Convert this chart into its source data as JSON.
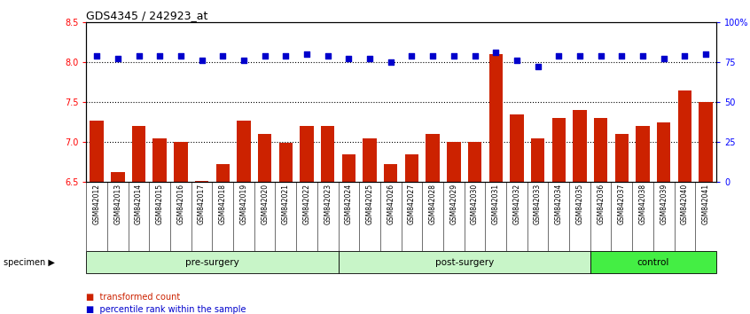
{
  "title": "GDS4345 / 242923_at",
  "categories": [
    "GSM842012",
    "GSM842013",
    "GSM842014",
    "GSM842015",
    "GSM842016",
    "GSM842017",
    "GSM842018",
    "GSM842019",
    "GSM842020",
    "GSM842021",
    "GSM842022",
    "GSM842023",
    "GSM842024",
    "GSM842025",
    "GSM842026",
    "GSM842027",
    "GSM842028",
    "GSM842029",
    "GSM842030",
    "GSM842031",
    "GSM842032",
    "GSM842033",
    "GSM842034",
    "GSM842035",
    "GSM842036",
    "GSM842037",
    "GSM842038",
    "GSM842039",
    "GSM842040",
    "GSM842041"
  ],
  "bar_values": [
    7.27,
    6.62,
    7.2,
    7.05,
    7.0,
    6.52,
    6.72,
    7.27,
    7.1,
    6.99,
    7.2,
    7.2,
    6.85,
    7.05,
    6.72,
    6.85,
    7.1,
    7.0,
    7.0,
    8.1,
    7.35,
    7.05,
    7.3,
    7.4,
    7.3,
    7.1,
    7.2,
    7.25,
    7.65,
    7.5
  ],
  "percentile_values": [
    79,
    77,
    79,
    79,
    79,
    76,
    79,
    76,
    79,
    79,
    80,
    79,
    77,
    77,
    75,
    79,
    79,
    79,
    79,
    81,
    76,
    72,
    79,
    79,
    79,
    79,
    79,
    77,
    79,
    80
  ],
  "bar_color": "#cc2200",
  "dot_color": "#0000cc",
  "ylim_left": [
    6.5,
    8.5
  ],
  "ylim_right": [
    0,
    100
  ],
  "yticks_left": [
    6.5,
    7.0,
    7.5,
    8.0,
    8.5
  ],
  "yticks_right": [
    0,
    25,
    50,
    75,
    100
  ],
  "ytick_labels_right": [
    "0",
    "25",
    "50",
    "75",
    "100%"
  ],
  "groups": [
    {
      "label": "pre-surgery",
      "start": 0,
      "end": 12,
      "color": "#c8f5c8"
    },
    {
      "label": "post-surgery",
      "start": 12,
      "end": 24,
      "color": "#c8f5c8"
    },
    {
      "label": "control",
      "start": 24,
      "end": 30,
      "color": "#44ee44"
    }
  ],
  "legend_items": [
    {
      "label": "transformed count",
      "color": "#cc2200"
    },
    {
      "label": "percentile rank within the sample",
      "color": "#0000cc"
    }
  ],
  "specimen_label": "specimen",
  "background_color": "#ffffff",
  "xtick_bg_color": "#cccccc",
  "dotted_lines": [
    7.0,
    7.5,
    8.0
  ]
}
